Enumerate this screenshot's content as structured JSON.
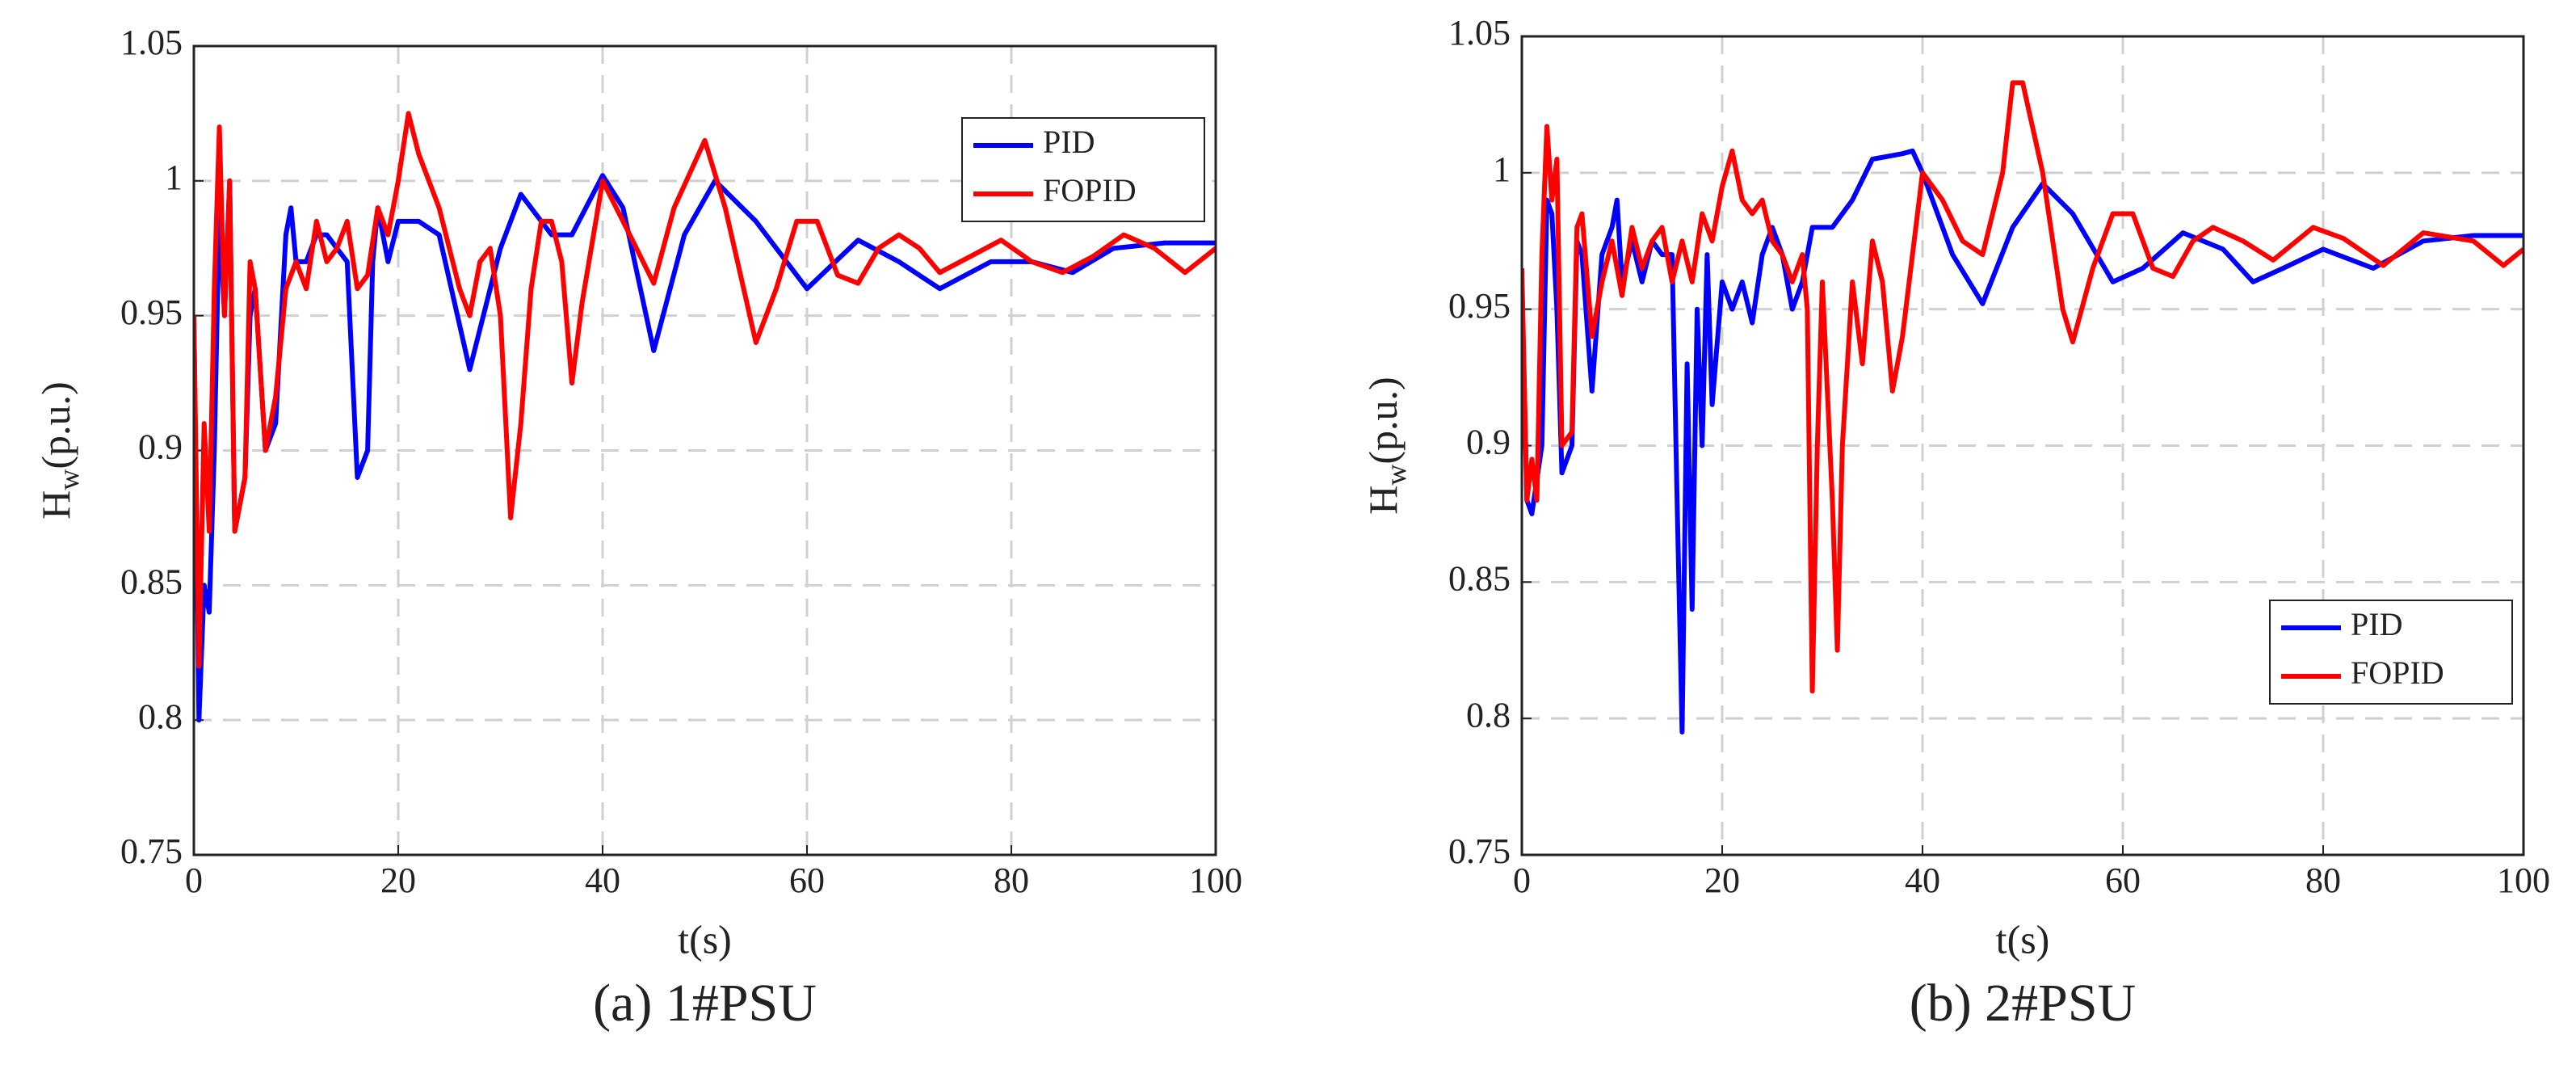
{
  "chart_data": [
    {
      "type": "line",
      "caption": "(a) 1#PSU",
      "xlabel": "t(s)",
      "ylabel": "H",
      "ylabel_sub": "w",
      "ylabel_unit": "(p.u.)",
      "xlim": [
        0,
        100
      ],
      "xticks": [
        0,
        20,
        40,
        60,
        80,
        100
      ],
      "ylim": [
        0.75,
        1.05
      ],
      "yticks": [
        0.75,
        0.8,
        0.85,
        0.9,
        0.95,
        1,
        1.05
      ],
      "grid": true,
      "legend": "upper right",
      "series": [
        {
          "name": "PID",
          "color": "#0000ff",
          "x": [
            0,
            0.5,
            1,
            1.5,
            2,
            2.5,
            3,
            3.5,
            4,
            5,
            5.5,
            6,
            7,
            8,
            9,
            9.5,
            10,
            11,
            12,
            13,
            14,
            15,
            16,
            17,
            17.5,
            18,
            19,
            20,
            22,
            24,
            27,
            30,
            32,
            35,
            37,
            40,
            42,
            45,
            48,
            51,
            55,
            60,
            65,
            69,
            73,
            78,
            82,
            86,
            90,
            95,
            100
          ],
          "values": [
            0.95,
            0.8,
            0.85,
            0.84,
            0.9,
            0.99,
            0.95,
            1.0,
            0.87,
            0.89,
            0.95,
            0.96,
            0.9,
            0.91,
            0.98,
            0.99,
            0.97,
            0.97,
            0.98,
            0.98,
            0.975,
            0.97,
            0.89,
            0.9,
            0.97,
            0.99,
            0.97,
            0.985,
            0.985,
            0.98,
            0.93,
            0.975,
            0.995,
            0.98,
            0.98,
            1.002,
            0.99,
            0.937,
            0.98,
            1.0,
            0.985,
            0.96,
            0.978,
            0.97,
            0.96,
            0.97,
            0.97,
            0.966,
            0.975,
            0.977,
            0.977
          ]
        },
        {
          "name": "FOPID",
          "color": "#ff0000",
          "x": [
            0,
            0.5,
            1,
            1.5,
            2,
            2.5,
            3,
            3.5,
            4,
            5,
            5.5,
            6,
            7,
            8,
            9,
            10,
            11,
            12,
            13,
            14,
            15,
            16,
            17,
            18,
            19,
            20,
            21,
            22,
            24,
            26,
            27,
            28,
            29,
            30,
            31,
            32,
            33,
            34,
            35,
            36,
            37,
            38,
            40,
            42,
            45,
            47,
            50,
            52,
            55,
            57,
            59,
            61,
            63,
            65,
            67,
            69,
            71,
            73,
            76,
            79,
            82,
            85,
            88,
            91,
            94,
            97,
            100
          ],
          "values": [
            0.95,
            0.82,
            0.91,
            0.87,
            0.96,
            1.02,
            0.95,
            1.0,
            0.87,
            0.89,
            0.97,
            0.96,
            0.9,
            0.92,
            0.96,
            0.97,
            0.96,
            0.985,
            0.97,
            0.975,
            0.985,
            0.96,
            0.965,
            0.99,
            0.98,
            1.0,
            1.025,
            1.01,
            0.99,
            0.96,
            0.95,
            0.97,
            0.975,
            0.95,
            0.875,
            0.91,
            0.96,
            0.985,
            0.985,
            0.97,
            0.925,
            0.955,
            1.0,
            0.985,
            0.962,
            0.99,
            1.015,
            0.99,
            0.94,
            0.96,
            0.985,
            0.985,
            0.965,
            0.962,
            0.975,
            0.98,
            0.975,
            0.966,
            0.972,
            0.978,
            0.97,
            0.966,
            0.972,
            0.98,
            0.975,
            0.966,
            0.975
          ]
        }
      ]
    },
    {
      "type": "line",
      "caption": "(b) 2#PSU",
      "xlabel": "t(s)",
      "ylabel": "H",
      "ylabel_sub": "w",
      "ylabel_unit": "(p.u.)",
      "xlim": [
        0,
        100
      ],
      "xticks": [
        0,
        20,
        40,
        60,
        80,
        100
      ],
      "ylim": [
        0.75,
        1.05
      ],
      "yticks": [
        0.75,
        0.8,
        0.85,
        0.9,
        0.95,
        1,
        1.05
      ],
      "grid": true,
      "legend": "lower right",
      "series": [
        {
          "name": "PID",
          "color": "#0000ff",
          "x": [
            0,
            0.5,
            1,
            2,
            2.5,
            3,
            3.5,
            4,
            5,
            5.5,
            6,
            7,
            8,
            9,
            9.5,
            10,
            11,
            12,
            13,
            14,
            15,
            15.5,
            16,
            16.5,
            17,
            17.5,
            18,
            18.5,
            19,
            20,
            21,
            22,
            23,
            24,
            25,
            26,
            27,
            28,
            29,
            31,
            33,
            35,
            38,
            39,
            40,
            43,
            46,
            49,
            52,
            55,
            59,
            62,
            66,
            70,
            73,
            76,
            80,
            85,
            90,
            95,
            100
          ],
          "values": [
            0.96,
            0.88,
            0.875,
            0.9,
            0.99,
            0.985,
            0.95,
            0.89,
            0.9,
            0.975,
            0.97,
            0.92,
            0.97,
            0.98,
            0.99,
            0.96,
            0.975,
            0.96,
            0.975,
            0.97,
            0.97,
            0.88,
            0.795,
            0.93,
            0.84,
            0.95,
            0.9,
            0.97,
            0.915,
            0.96,
            0.95,
            0.96,
            0.945,
            0.97,
            0.98,
            0.97,
            0.95,
            0.96,
            0.98,
            0.98,
            0.99,
            1.005,
            1.007,
            1.008,
            1.0,
            0.97,
            0.952,
            0.98,
            0.996,
            0.985,
            0.96,
            0.965,
            0.978,
            0.972,
            0.96,
            0.965,
            0.972,
            0.965,
            0.975,
            0.977,
            0.977
          ]
        },
        {
          "name": "FOPID",
          "color": "#ff0000",
          "x": [
            0,
            0.5,
            1,
            1.5,
            2,
            2.5,
            3,
            3.5,
            4,
            5,
            5.5,
            6,
            7,
            8,
            9,
            10,
            11,
            12,
            13,
            14,
            15,
            16,
            17,
            18,
            19,
            20,
            21,
            22,
            23,
            24,
            25,
            26,
            27,
            28,
            28.5,
            29,
            29.5,
            30,
            31,
            31.5,
            32,
            33,
            34,
            35,
            36,
            37,
            38,
            39,
            40,
            42,
            44,
            46,
            48,
            49,
            50,
            52,
            54,
            55,
            57,
            59,
            61,
            63,
            65,
            67,
            69,
            72,
            75,
            79,
            82,
            86,
            90,
            95,
            98,
            100
          ],
          "values": [
            0.965,
            0.88,
            0.895,
            0.88,
            0.97,
            1.017,
            0.99,
            1.005,
            0.9,
            0.905,
            0.98,
            0.985,
            0.94,
            0.96,
            0.975,
            0.955,
            0.98,
            0.965,
            0.975,
            0.98,
            0.96,
            0.975,
            0.96,
            0.985,
            0.975,
            0.995,
            1.008,
            0.99,
            0.985,
            0.99,
            0.975,
            0.97,
            0.96,
            0.97,
            0.95,
            0.81,
            0.9,
            0.96,
            0.88,
            0.825,
            0.9,
            0.96,
            0.93,
            0.975,
            0.96,
            0.92,
            0.94,
            0.97,
            1.0,
            0.99,
            0.975,
            0.97,
            1.0,
            1.033,
            1.033,
            1.0,
            0.95,
            0.938,
            0.965,
            0.985,
            0.985,
            0.965,
            0.962,
            0.975,
            0.98,
            0.975,
            0.968,
            0.98,
            0.976,
            0.966,
            0.978,
            0.975,
            0.966,
            0.972
          ]
        }
      ]
    }
  ]
}
